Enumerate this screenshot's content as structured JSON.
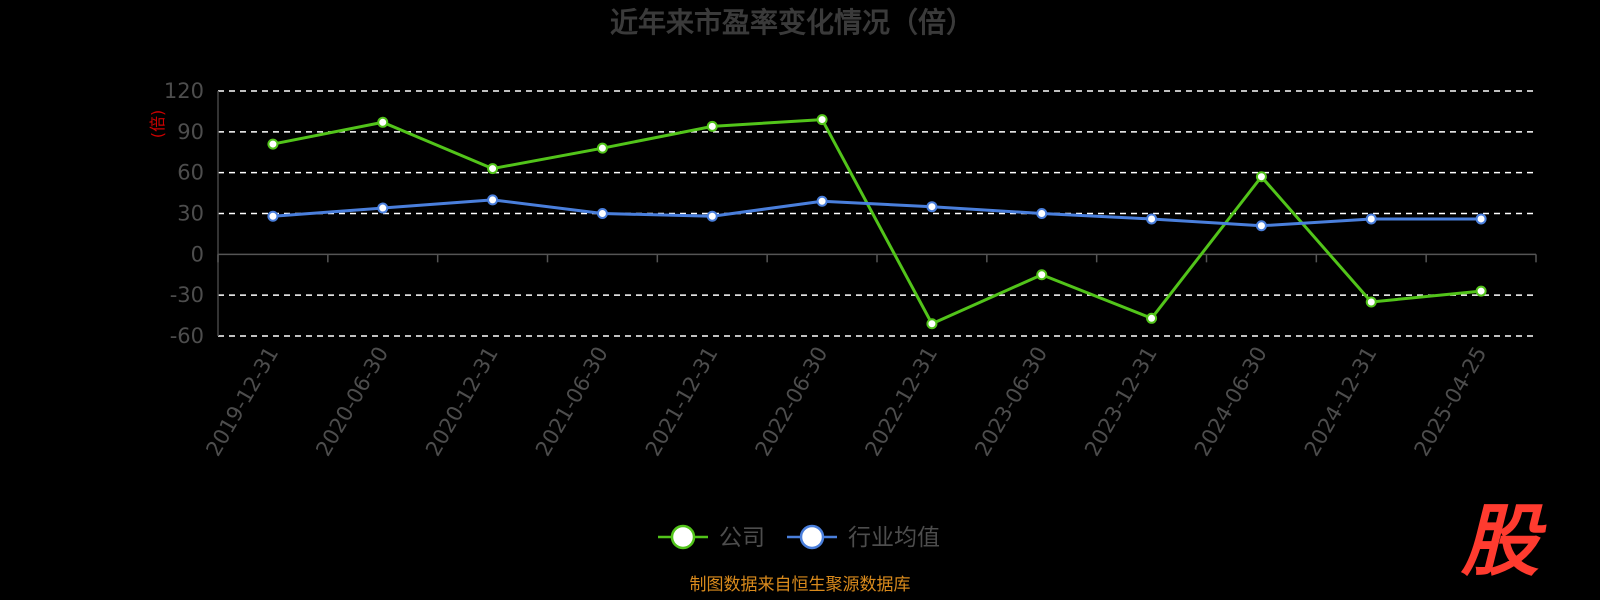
{
  "chart_data": {
    "type": "line",
    "title": "近年来市盈率变化情况（倍）",
    "ylabel": "(倍)",
    "xlabel": "",
    "ylim": [
      -60,
      120
    ],
    "yticks": [
      120,
      90,
      60,
      30,
      0,
      -30,
      -60
    ],
    "grid": true,
    "legend_position": "bottom-center",
    "categories": [
      "2019-12-31",
      "2020-06-30",
      "2020-12-31",
      "2021-06-30",
      "2021-12-31",
      "2022-06-30",
      "2022-12-31",
      "2023-06-30",
      "2023-12-31",
      "2024-06-30",
      "2024-12-31",
      "2025-04-25"
    ],
    "series": [
      {
        "name": "公司",
        "color": "#52c41a",
        "values": [
          81,
          97,
          63,
          78,
          94,
          99,
          -51,
          -15,
          -47,
          57,
          -35,
          -27
        ]
      },
      {
        "name": "行业均值",
        "color": "#4a7fdc",
        "values": [
          28,
          34,
          40,
          30,
          28,
          39,
          35,
          30,
          26,
          21,
          26,
          26
        ]
      }
    ]
  },
  "footer": {
    "source": "制图数据来自恒生聚源数据库",
    "watermark": "股"
  }
}
